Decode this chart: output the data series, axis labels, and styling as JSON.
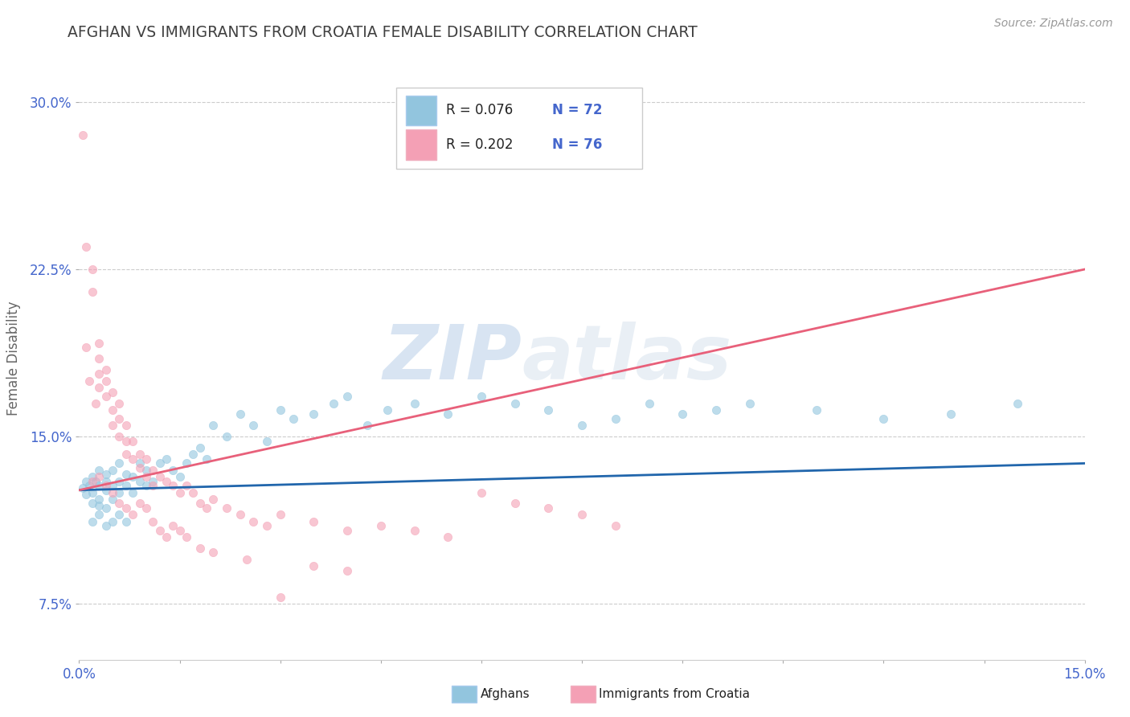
{
  "title": "AFGHAN VS IMMIGRANTS FROM CROATIA FEMALE DISABILITY CORRELATION CHART",
  "source_text": "Source: ZipAtlas.com",
  "ylabel": "Female Disability",
  "xlim": [
    0.0,
    0.15
  ],
  "ylim": [
    0.05,
    0.32
  ],
  "xticks": [
    0.0,
    0.015,
    0.03,
    0.045,
    0.06,
    0.075,
    0.09,
    0.105,
    0.12,
    0.135,
    0.15
  ],
  "xticklabels": [
    "0.0%",
    "",
    "",
    "",
    "",
    "",
    "",
    "",
    "",
    "",
    "15.0%"
  ],
  "yticks": [
    0.075,
    0.15,
    0.225,
    0.3
  ],
  "yticklabels": [
    "7.5%",
    "15.0%",
    "22.5%",
    "30.0%"
  ],
  "blue_color": "#92c5de",
  "pink_color": "#f4a0b5",
  "blue_line_color": "#2166ac",
  "pink_line_color": "#e8607a",
  "legend_r1": "R = 0.076",
  "legend_n1": "N = 72",
  "legend_r2": "R = 0.202",
  "legend_n2": "N = 76",
  "label1": "Afghans",
  "label2": "Immigrants from Croatia",
  "watermark": "ZIPAtlas",
  "title_color": "#404040",
  "tick_color": "#4466cc",
  "grid_color": "#cccccc",
  "blue_line_x": [
    0.0,
    0.15
  ],
  "blue_line_y": [
    0.126,
    0.138
  ],
  "pink_line_x": [
    0.0,
    0.15
  ],
  "pink_line_y": [
    0.126,
    0.225
  ],
  "blue_scatter_x": [
    0.0005,
    0.001,
    0.001,
    0.0015,
    0.002,
    0.002,
    0.002,
    0.0025,
    0.003,
    0.003,
    0.003,
    0.003,
    0.004,
    0.004,
    0.004,
    0.004,
    0.005,
    0.005,
    0.005,
    0.006,
    0.006,
    0.006,
    0.007,
    0.007,
    0.008,
    0.008,
    0.009,
    0.009,
    0.01,
    0.01,
    0.011,
    0.012,
    0.013,
    0.014,
    0.015,
    0.016,
    0.017,
    0.018,
    0.019,
    0.02,
    0.022,
    0.024,
    0.026,
    0.028,
    0.03,
    0.032,
    0.035,
    0.038,
    0.04,
    0.043,
    0.046,
    0.05,
    0.055,
    0.06,
    0.065,
    0.07,
    0.075,
    0.08,
    0.085,
    0.09,
    0.095,
    0.1,
    0.11,
    0.12,
    0.13,
    0.14,
    0.002,
    0.003,
    0.004,
    0.005,
    0.006,
    0.007
  ],
  "blue_scatter_y": [
    0.127,
    0.13,
    0.124,
    0.128,
    0.132,
    0.125,
    0.12,
    0.13,
    0.128,
    0.135,
    0.122,
    0.119,
    0.126,
    0.133,
    0.118,
    0.13,
    0.128,
    0.135,
    0.122,
    0.13,
    0.138,
    0.125,
    0.133,
    0.128,
    0.132,
    0.125,
    0.13,
    0.138,
    0.135,
    0.128,
    0.13,
    0.138,
    0.14,
    0.135,
    0.132,
    0.138,
    0.142,
    0.145,
    0.14,
    0.155,
    0.15,
    0.16,
    0.155,
    0.148,
    0.162,
    0.158,
    0.16,
    0.165,
    0.168,
    0.155,
    0.162,
    0.165,
    0.16,
    0.168,
    0.165,
    0.162,
    0.155,
    0.158,
    0.165,
    0.16,
    0.162,
    0.165,
    0.162,
    0.158,
    0.16,
    0.165,
    0.112,
    0.115,
    0.11,
    0.112,
    0.115,
    0.112
  ],
  "pink_scatter_x": [
    0.0005,
    0.001,
    0.001,
    0.0015,
    0.002,
    0.002,
    0.0025,
    0.003,
    0.003,
    0.003,
    0.003,
    0.004,
    0.004,
    0.004,
    0.005,
    0.005,
    0.005,
    0.006,
    0.006,
    0.006,
    0.007,
    0.007,
    0.007,
    0.008,
    0.008,
    0.009,
    0.009,
    0.01,
    0.01,
    0.011,
    0.011,
    0.012,
    0.013,
    0.014,
    0.015,
    0.016,
    0.017,
    0.018,
    0.019,
    0.02,
    0.022,
    0.024,
    0.026,
    0.028,
    0.03,
    0.035,
    0.04,
    0.045,
    0.05,
    0.055,
    0.06,
    0.065,
    0.07,
    0.075,
    0.08,
    0.002,
    0.003,
    0.004,
    0.005,
    0.006,
    0.007,
    0.008,
    0.009,
    0.01,
    0.011,
    0.012,
    0.013,
    0.014,
    0.015,
    0.016,
    0.018,
    0.02,
    0.025,
    0.03,
    0.035,
    0.04
  ],
  "pink_scatter_y": [
    0.285,
    0.19,
    0.235,
    0.175,
    0.225,
    0.215,
    0.165,
    0.192,
    0.185,
    0.178,
    0.172,
    0.18,
    0.175,
    0.168,
    0.17,
    0.162,
    0.155,
    0.165,
    0.158,
    0.15,
    0.155,
    0.148,
    0.142,
    0.148,
    0.14,
    0.142,
    0.136,
    0.14,
    0.132,
    0.135,
    0.128,
    0.132,
    0.13,
    0.128,
    0.125,
    0.128,
    0.125,
    0.12,
    0.118,
    0.122,
    0.118,
    0.115,
    0.112,
    0.11,
    0.115,
    0.112,
    0.108,
    0.11,
    0.108,
    0.105,
    0.125,
    0.12,
    0.118,
    0.115,
    0.11,
    0.13,
    0.132,
    0.128,
    0.125,
    0.12,
    0.118,
    0.115,
    0.12,
    0.118,
    0.112,
    0.108,
    0.105,
    0.11,
    0.108,
    0.105,
    0.1,
    0.098,
    0.095,
    0.078,
    0.092,
    0.09
  ]
}
